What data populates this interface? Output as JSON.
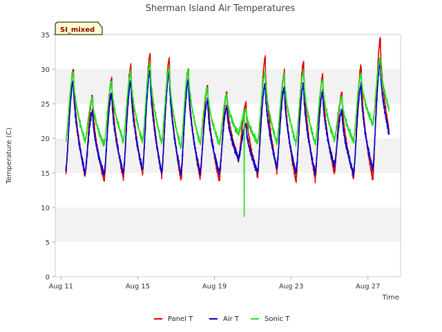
{
  "chart_data": {
    "type": "line",
    "title": "Sherman Island Air Temperatures",
    "xlabel": "Time",
    "ylabel": "Temperature (C)",
    "badge": "SI_mixed",
    "x_unit": "days since Aug 11",
    "xlim": [
      -0.3,
      17.7
    ],
    "ylim": [
      0,
      35
    ],
    "yticks": [
      0,
      5,
      10,
      15,
      20,
      25,
      30,
      35
    ],
    "xticks": [
      {
        "label": "Aug 11",
        "day": 0
      },
      {
        "label": "Aug 15",
        "day": 4
      },
      {
        "label": "Aug 19",
        "day": 8
      },
      {
        "label": "Aug 23",
        "day": 12
      },
      {
        "label": "Aug 27",
        "day": 16
      }
    ],
    "grid": "alternating horizontal bands",
    "legend_position": "bottom-center",
    "day_start": 0.25,
    "day_end": 17.1,
    "series": [
      {
        "name": "Panel T",
        "color": "#dd0000",
        "daily_min": [
          14.8,
          14.6,
          13.9,
          14.3,
          14.9,
          14.6,
          14.0,
          14.3,
          13.9,
          16.8,
          14.6,
          15.3,
          13.8,
          14.1,
          15.0,
          14.4,
          14.0,
          19.0
        ],
        "daily_max": [
          29.9,
          26.0,
          28.6,
          30.4,
          32.1,
          31.4,
          30.0,
          27.5,
          26.4,
          25.0,
          31.5,
          29.5,
          30.9,
          29.0,
          26.5,
          30.3,
          34.2
        ]
      },
      {
        "name": "Air T",
        "color": "#0000cc",
        "daily_min": [
          15.5,
          15.0,
          14.8,
          15.0,
          15.4,
          15.0,
          14.8,
          15.1,
          15.0,
          17.0,
          15.2,
          15.8,
          15.0,
          15.0,
          16.0,
          15.0,
          15.5,
          19.0
        ],
        "daily_max": [
          28.2,
          23.8,
          26.5,
          28.2,
          29.8,
          29.5,
          28.3,
          25.5,
          24.5,
          22.0,
          27.8,
          27.3,
          27.8,
          26.6,
          24.0,
          27.6,
          30.8
        ]
      },
      {
        "name": "Sonic T",
        "color": "#22dd22",
        "daily_min": [
          19.6,
          19.6,
          19.1,
          19.6,
          19.5,
          19.4,
          18.6,
          19.3,
          19.2,
          20.6,
          19.4,
          19.3,
          19.3,
          19.2,
          19.8,
          19.6,
          22.0,
          23.0
        ],
        "daily_max": [
          29.4,
          25.7,
          28.1,
          29.5,
          30.8,
          30.1,
          29.9,
          27.3,
          26.2,
          24.1,
          29.5,
          29.2,
          29.5,
          28.4,
          25.9,
          29.3,
          31.5
        ],
        "spike": {
          "day": 9.55,
          "value": 8.7
        }
      }
    ]
  }
}
